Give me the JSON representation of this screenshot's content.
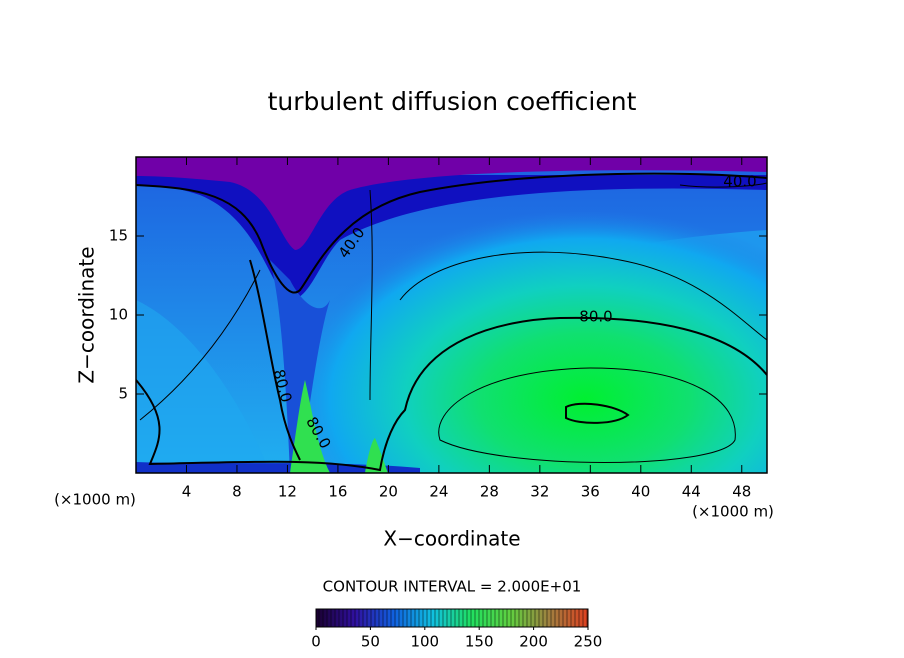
{
  "chart_data": {
    "type": "contour",
    "title": "turbulent diffusion coefficient",
    "x_label": "X−coordinate",
    "y_label": "Z−coordinate",
    "x_unit_labels": [
      "(×1000 m)",
      "(×1000 m)"
    ],
    "xlim": [
      0,
      50
    ],
    "ylim": [
      0,
      20
    ],
    "xticks": [
      4,
      8,
      12,
      16,
      20,
      24,
      28,
      32,
      36,
      40,
      44,
      48
    ],
    "yticks": [
      5,
      10,
      15
    ],
    "contour_labels": [
      "40.0",
      "40.0",
      "80.0",
      "80.0",
      "80.0"
    ],
    "colorbar": {
      "label": "CONTOUR INTERVAL = 2.000E+01",
      "lim": [
        0,
        250
      ],
      "ticks": [
        0,
        50,
        100,
        150,
        200,
        250
      ],
      "colors": [
        "#1a0030",
        "#3010a0",
        "#1060e0",
        "#10c0e0",
        "#20e060",
        "#60d040",
        "#a08040",
        "#e04020"
      ]
    }
  }
}
